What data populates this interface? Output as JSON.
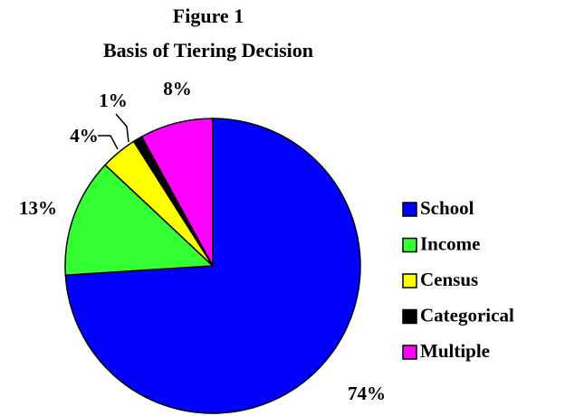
{
  "chart_data": {
    "type": "pie",
    "title": "Figure 1",
    "subtitle": "Basis of Tiering Decision",
    "categories": [
      "School",
      "Income",
      "Census",
      "Categorical",
      "Multiple"
    ],
    "values": [
      74,
      13,
      4,
      1,
      8
    ],
    "value_labels": [
      "74%",
      "13%",
      "4%",
      "1%",
      "8%"
    ],
    "colors": [
      "#0000ff",
      "#33ff33",
      "#ffff00",
      "#000000",
      "#ff00ff"
    ],
    "legend": "right"
  }
}
